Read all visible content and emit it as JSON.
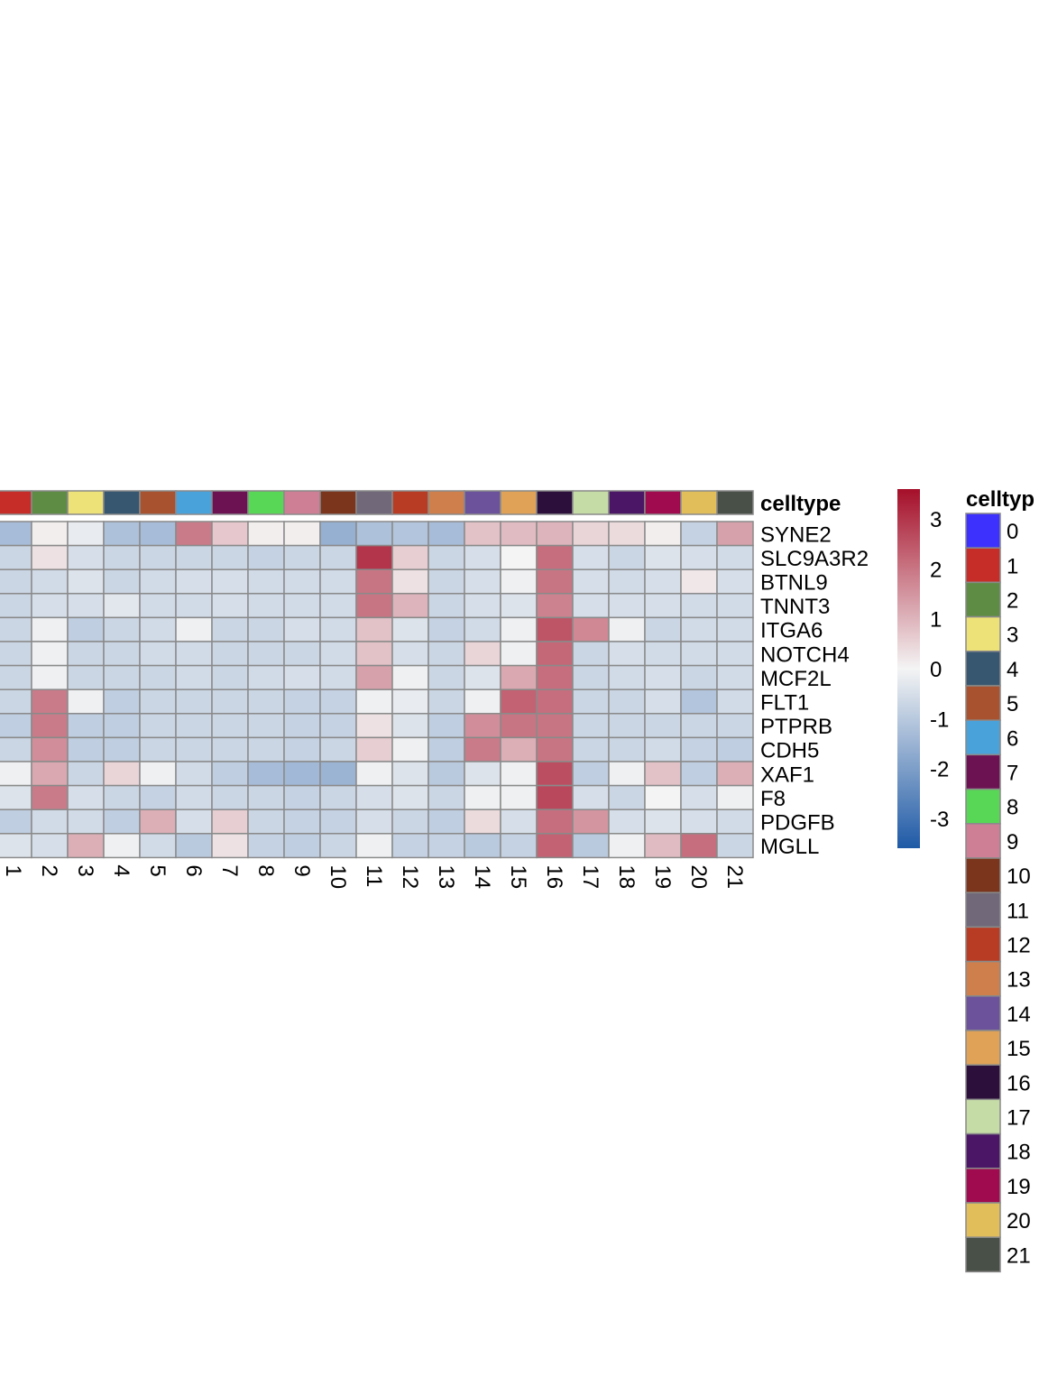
{
  "chart_data": {
    "type": "heatmap",
    "title": "",
    "annotation_title": "celltype",
    "legend_title": "celltyp",
    "columns": [
      "1",
      "2",
      "3",
      "4",
      "5",
      "6",
      "7",
      "8",
      "9",
      "10",
      "11",
      "12",
      "13",
      "14",
      "15",
      "16",
      "17",
      "18",
      "19",
      "20",
      "21"
    ],
    "rows": [
      "SYNE2",
      "SLC9A3R2",
      "BTNL9",
      "TNNT3",
      "ITGA6",
      "NOTCH4",
      "MCF2L",
      "FLT1",
      "PTPRB",
      "CDH5",
      "XAF1",
      "F8",
      "PDGFB",
      "MGLL"
    ],
    "values": [
      [
        -1.3,
        0.1,
        -0.2,
        -1.2,
        -1.3,
        1.9,
        0.7,
        0.1,
        0.1,
        -1.6,
        -1.2,
        -1.1,
        -1.3,
        0.8,
        0.9,
        1.0,
        0.5,
        0.4,
        0.1,
        -0.8,
        1.3
      ],
      [
        -0.7,
        0.3,
        -0.5,
        -0.7,
        -0.7,
        -0.7,
        -0.7,
        -0.8,
        -0.7,
        -0.7,
        3.0,
        0.6,
        -0.7,
        -0.5,
        0.0,
        2.1,
        -0.5,
        -0.7,
        -0.4,
        -0.5,
        -0.6
      ],
      [
        -0.7,
        -0.6,
        -0.4,
        -0.7,
        -0.6,
        -0.5,
        -0.5,
        -0.6,
        -0.6,
        -0.6,
        2.0,
        0.3,
        -0.7,
        -0.5,
        -0.1,
        2.0,
        -0.5,
        -0.6,
        -0.5,
        0.2,
        -0.5
      ],
      [
        -0.7,
        -0.5,
        -0.5,
        -0.3,
        -0.6,
        -0.6,
        -0.5,
        -0.6,
        -0.6,
        -0.6,
        2.0,
        1.0,
        -0.7,
        -0.5,
        -0.4,
        1.8,
        -0.5,
        -0.5,
        -0.5,
        -0.6,
        -0.6
      ],
      [
        -0.7,
        -0.1,
        -0.9,
        -0.7,
        -0.6,
        -0.1,
        -0.7,
        -0.7,
        -0.5,
        -0.6,
        0.8,
        -0.4,
        -0.8,
        -0.6,
        -0.1,
        2.5,
        1.7,
        -0.1,
        -0.7,
        -0.6,
        -0.6
      ],
      [
        -0.7,
        -0.1,
        -0.7,
        -0.7,
        -0.6,
        -0.6,
        -0.7,
        -0.7,
        -0.7,
        -0.6,
        0.8,
        -0.5,
        -0.7,
        0.5,
        -0.1,
        2.2,
        -0.7,
        -0.5,
        -0.6,
        -0.6,
        -0.6
      ],
      [
        -0.7,
        -0.1,
        -0.7,
        -0.7,
        -0.7,
        -0.6,
        -0.7,
        -0.6,
        -0.5,
        -0.6,
        1.3,
        -0.1,
        -0.7,
        -0.4,
        1.2,
        2.1,
        -0.7,
        -0.6,
        -0.5,
        -0.7,
        -0.6
      ],
      [
        -0.7,
        1.9,
        -0.1,
        -0.9,
        -0.7,
        -0.7,
        -0.7,
        -0.7,
        -0.8,
        -0.8,
        -0.1,
        -0.2,
        -0.7,
        -0.1,
        2.3,
        2.1,
        -0.7,
        -0.7,
        -0.5,
        -1.1,
        -0.6
      ],
      [
        -0.9,
        1.9,
        -0.9,
        -0.9,
        -0.7,
        -0.7,
        -0.7,
        -0.7,
        -0.8,
        -0.8,
        0.3,
        -0.4,
        -0.9,
        1.6,
        2.0,
        2.0,
        -0.7,
        -0.7,
        -0.7,
        -0.7,
        -0.7
      ],
      [
        -0.7,
        1.6,
        -0.9,
        -0.9,
        -0.7,
        -0.7,
        -0.7,
        -0.7,
        -0.8,
        -0.7,
        0.6,
        -0.1,
        -0.9,
        1.9,
        1.1,
        2.0,
        -0.7,
        -0.7,
        -0.6,
        -0.8,
        -0.9
      ],
      [
        -0.1,
        1.2,
        -0.7,
        0.5,
        -0.1,
        -0.6,
        -0.9,
        -1.3,
        -1.4,
        -1.5,
        -0.1,
        -0.4,
        -1.0,
        -0.4,
        -0.1,
        2.6,
        -0.9,
        -0.1,
        0.8,
        -0.9,
        1.1
      ],
      [
        -0.4,
        1.9,
        -0.5,
        -0.7,
        -0.8,
        -0.6,
        -0.7,
        -0.7,
        -0.8,
        -0.7,
        -0.5,
        -0.4,
        -0.7,
        -0.1,
        -0.1,
        2.7,
        -0.5,
        -0.7,
        0.0,
        -0.5,
        -0.1
      ],
      [
        -0.9,
        -0.6,
        -0.6,
        -0.9,
        1.1,
        -0.5,
        0.6,
        -0.7,
        -0.8,
        -0.8,
        -0.5,
        -0.7,
        -0.9,
        0.4,
        -0.5,
        2.1,
        1.5,
        -0.5,
        -0.4,
        -0.5,
        -0.6
      ],
      [
        -0.4,
        -0.5,
        1.1,
        -0.1,
        -0.6,
        -1.0,
        0.3,
        -0.8,
        -0.9,
        -0.7,
        -0.1,
        -0.8,
        -0.8,
        -1.0,
        -0.8,
        2.3,
        -1.0,
        -0.1,
        0.9,
        2.1,
        -0.7
      ]
    ],
    "color_scale": {
      "min": -3.6,
      "max": 3.6,
      "ticks": [
        3,
        2,
        1,
        0,
        -1,
        -2,
        -3
      ],
      "tick_labels": [
        "3",
        "2",
        "1",
        "0",
        "-1",
        "-2",
        "-3"
      ],
      "low": "#1f5aa6",
      "mid": "#f4f4f4",
      "high": "#a50f29"
    },
    "celltype_colors": {
      "0": "#3d32fd",
      "1": "#c62d28",
      "2": "#5f8c45",
      "3": "#ede277",
      "4": "#36576f",
      "5": "#a8522f",
      "6": "#4aa2db",
      "7": "#6c1252",
      "8": "#58d656",
      "9": "#cf7f95",
      "10": "#7a351c",
      "11": "#716879",
      "12": "#b83c24",
      "13": "#ce7f4c",
      "14": "#6b529b",
      "15": "#dfa257",
      "16": "#2c0f3a",
      "17": "#c6dca7",
      "18": "#4a1665",
      "19": "#a00a4e",
      "20": "#e2be5b",
      "21": "#495047"
    },
    "legend_items": [
      "0",
      "1",
      "2",
      "3",
      "4",
      "5",
      "6",
      "7",
      "8",
      "9",
      "10",
      "11",
      "12",
      "13",
      "14",
      "15",
      "16",
      "17",
      "18",
      "19",
      "20",
      "21"
    ]
  }
}
